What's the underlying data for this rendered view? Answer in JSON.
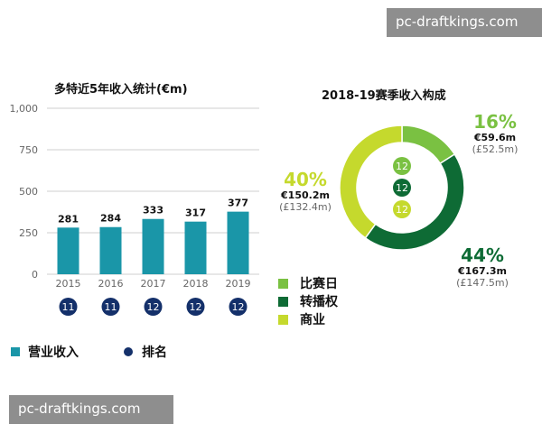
{
  "watermark": {
    "top": "pc-draftkings.com",
    "bottom": "pc-draftkings.com"
  },
  "colors": {
    "bar": "#1a96a8",
    "rank_badge": "#14306a",
    "matchday": "#7ac142",
    "broadcast": "#0e6b35",
    "commercial": "#c5d92d",
    "grid": "#cfcfcf"
  },
  "chart_data": [
    {
      "type": "bar",
      "title": "多特近5年收入统计(€m)",
      "categories": [
        "2015",
        "2016",
        "2017",
        "2018",
        "2019"
      ],
      "series": [
        {
          "name": "营业收入",
          "values": [
            281,
            284,
            333,
            317,
            377
          ]
        }
      ],
      "rank": {
        "name": "排名",
        "values": [
          "11",
          "11",
          "12",
          "12",
          "12"
        ]
      },
      "ylim": [
        0,
        1000
      ],
      "yticks": [
        "0",
        "250",
        "500",
        "750",
        "1,000"
      ],
      "grid": true,
      "legend": [
        {
          "label": "营业收入",
          "marker": "square"
        },
        {
          "label": "排名",
          "marker": "dot"
        }
      ]
    },
    {
      "type": "pie",
      "title": "2018-19赛季收入构成",
      "slices": [
        {
          "name": "比赛日",
          "pct": 16,
          "pct_label": "16%",
          "eur": "€59.6m",
          "gbp": "(£52.5m)"
        },
        {
          "name": "转播权",
          "pct": 44,
          "pct_label": "44%",
          "eur": "€167.3m",
          "gbp": "(£147.5m)"
        },
        {
          "name": "商业",
          "pct": 40,
          "pct_label": "40%",
          "eur": "€150.2m",
          "gbp": "(£132.4m)"
        }
      ],
      "center_badges": [
        "12",
        "12",
        "12"
      ],
      "legend": [
        "比赛日",
        "转播权",
        "商业"
      ]
    }
  ]
}
